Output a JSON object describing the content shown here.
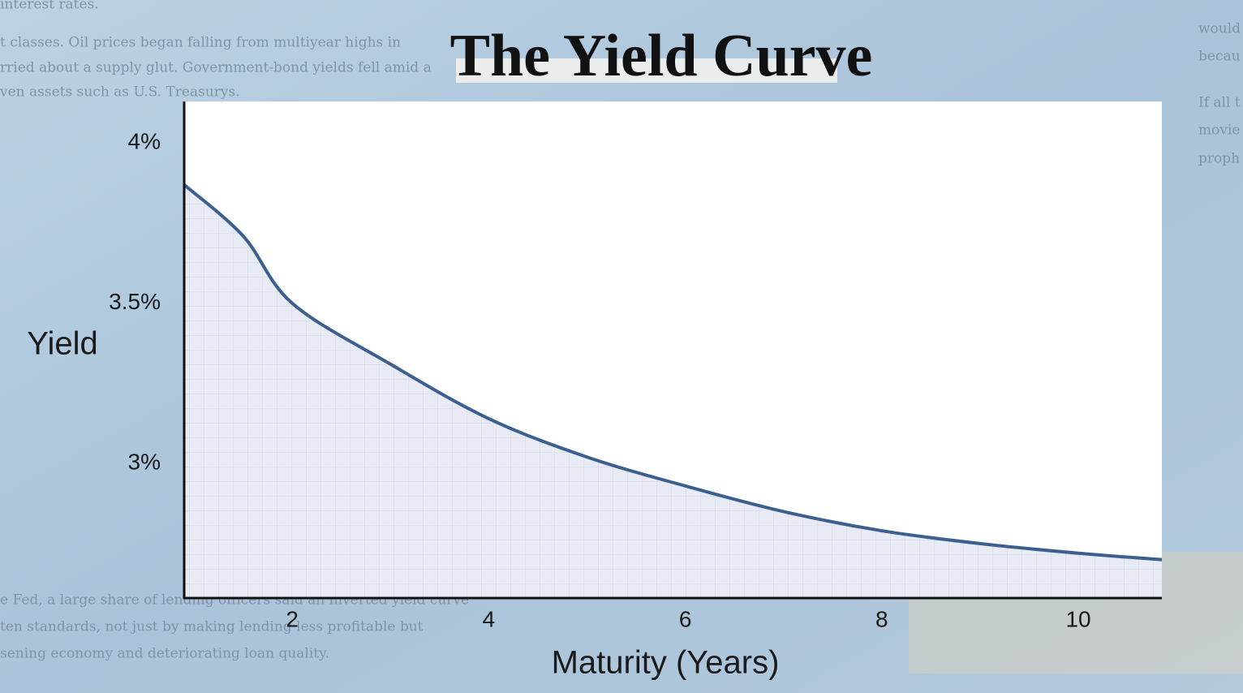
{
  "background_text": {
    "left": [
      "interest rates.",
      "t classes. Oil prices began falling from multiyear highs in",
      "rried about a supply glut. Government-bond yields fell amid a",
      "ven assets such as U.S. Treasurys."
    ],
    "bottom_left": [
      "e Fed, a large share of lending officers said an inverted yield curve",
      "ten standards, not just by making lending less profitable but",
      "sening economy and deteriorating loan quality."
    ],
    "right": [
      "would",
      "becau",
      "If all t",
      "movie",
      "proph"
    ]
  },
  "chart_data": {
    "type": "line",
    "title": "The Yield Curve",
    "x_label": "Maturity (Years)",
    "y_label": "Yield",
    "x": [
      0.9,
      1.5,
      2,
      3,
      4,
      5,
      6,
      7,
      8,
      9,
      10,
      10.85
    ],
    "series": [
      {
        "color": "#3b5f8e",
        "fill": "#e8ebf6",
        "values": [
          3.87,
          3.71,
          3.5,
          3.31,
          3.14,
          3.02,
          2.93,
          2.85,
          2.79,
          2.75,
          2.72,
          2.7
        ]
      }
    ],
    "xlim": [
      0.9,
      10.85
    ],
    "ylim": [
      2.58,
      4.13
    ],
    "xticks": [
      2,
      4,
      6,
      8,
      10
    ],
    "yticks": [
      {
        "value": 4,
        "label": "4%"
      },
      {
        "value": 3.5,
        "label": "3.5%"
      },
      {
        "value": 3,
        "label": "3%"
      }
    ],
    "grid": false,
    "area": true
  }
}
